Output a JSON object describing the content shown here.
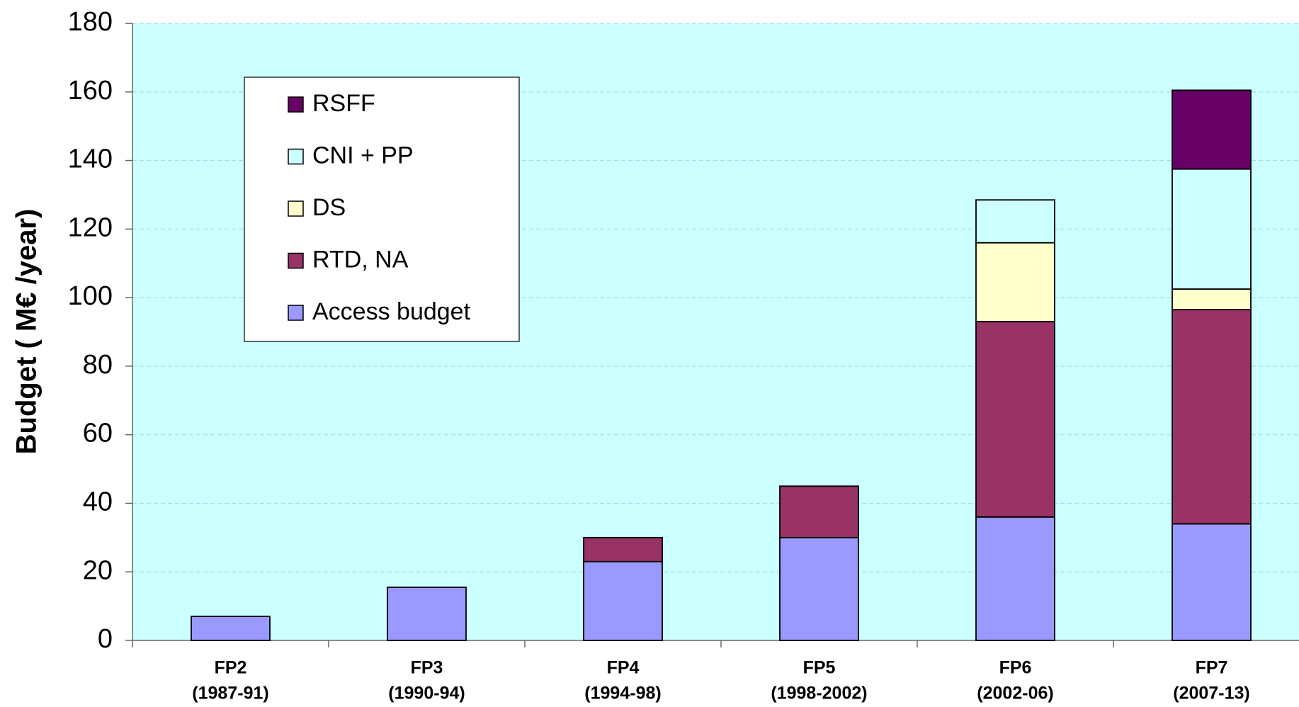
{
  "chart_data": {
    "type": "stacked-bar",
    "y_label": "Budget ( M€ /year)",
    "categories": [
      [
        "FP2",
        "(1987-91)"
      ],
      [
        "FP3",
        "(1990-94)"
      ],
      [
        "FP4",
        "(1994-98)"
      ],
      [
        "FP5",
        "(1998-2002)"
      ],
      [
        "FP6",
        "(2002-06)"
      ],
      [
        "FP7",
        "(2007-13)"
      ]
    ],
    "series": [
      {
        "name": "Access budget",
        "color": "#9999ff",
        "values": [
          7,
          15.5,
          23,
          30,
          36,
          34
        ]
      },
      {
        "name": "RTD, NA",
        "color": "#993366",
        "values": [
          0,
          0,
          7,
          15,
          57,
          62.5
        ]
      },
      {
        "name": "DS",
        "color": "#ffffcc",
        "values": [
          0,
          0,
          0,
          0,
          23,
          6
        ]
      },
      {
        "name": "CNI + PP",
        "color": "#ccffff",
        "values": [
          0,
          0,
          0,
          0,
          12.5,
          35
        ]
      },
      {
        "name": "RSFF",
        "color": "#660066",
        "values": [
          0,
          0,
          0,
          0,
          0,
          23
        ]
      }
    ],
    "ylim": [
      0,
      180
    ],
    "yticks": [
      0,
      20,
      40,
      60,
      80,
      100,
      120,
      140,
      160,
      180
    ],
    "grid": true,
    "plot_background": "#ccffff",
    "legend": "upper left"
  }
}
